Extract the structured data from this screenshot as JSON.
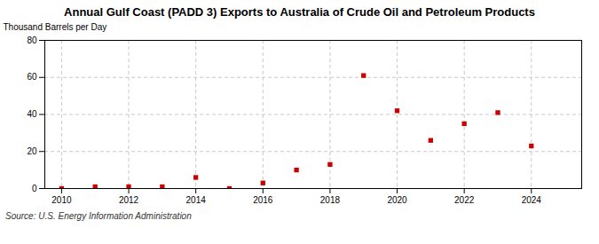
{
  "chart_data": {
    "type": "scatter",
    "title": "Annual Gulf Coast (PADD 3) Exports to Australia of Crude Oil and Petroleum Products",
    "ylabel": "Thousand Barrels per Day",
    "source": "Source: U.S. Energy Information Administration",
    "x": [
      2010,
      2011,
      2012,
      2013,
      2014,
      2015,
      2016,
      2017,
      2018,
      2019,
      2020,
      2021,
      2022,
      2023,
      2024
    ],
    "values": [
      0,
      1,
      1,
      1,
      6,
      0,
      3,
      10,
      13,
      61,
      42,
      26,
      35,
      41,
      23
    ],
    "color": "#cc0000",
    "marker": "square",
    "xlim": [
      2009.5,
      2025.5
    ],
    "ylim": [
      0,
      80
    ],
    "yticks": [
      0,
      20,
      40,
      60,
      80
    ],
    "xticks": [
      2010,
      2012,
      2014,
      2016,
      2018,
      2020,
      2022,
      2024
    ],
    "grid": true
  }
}
